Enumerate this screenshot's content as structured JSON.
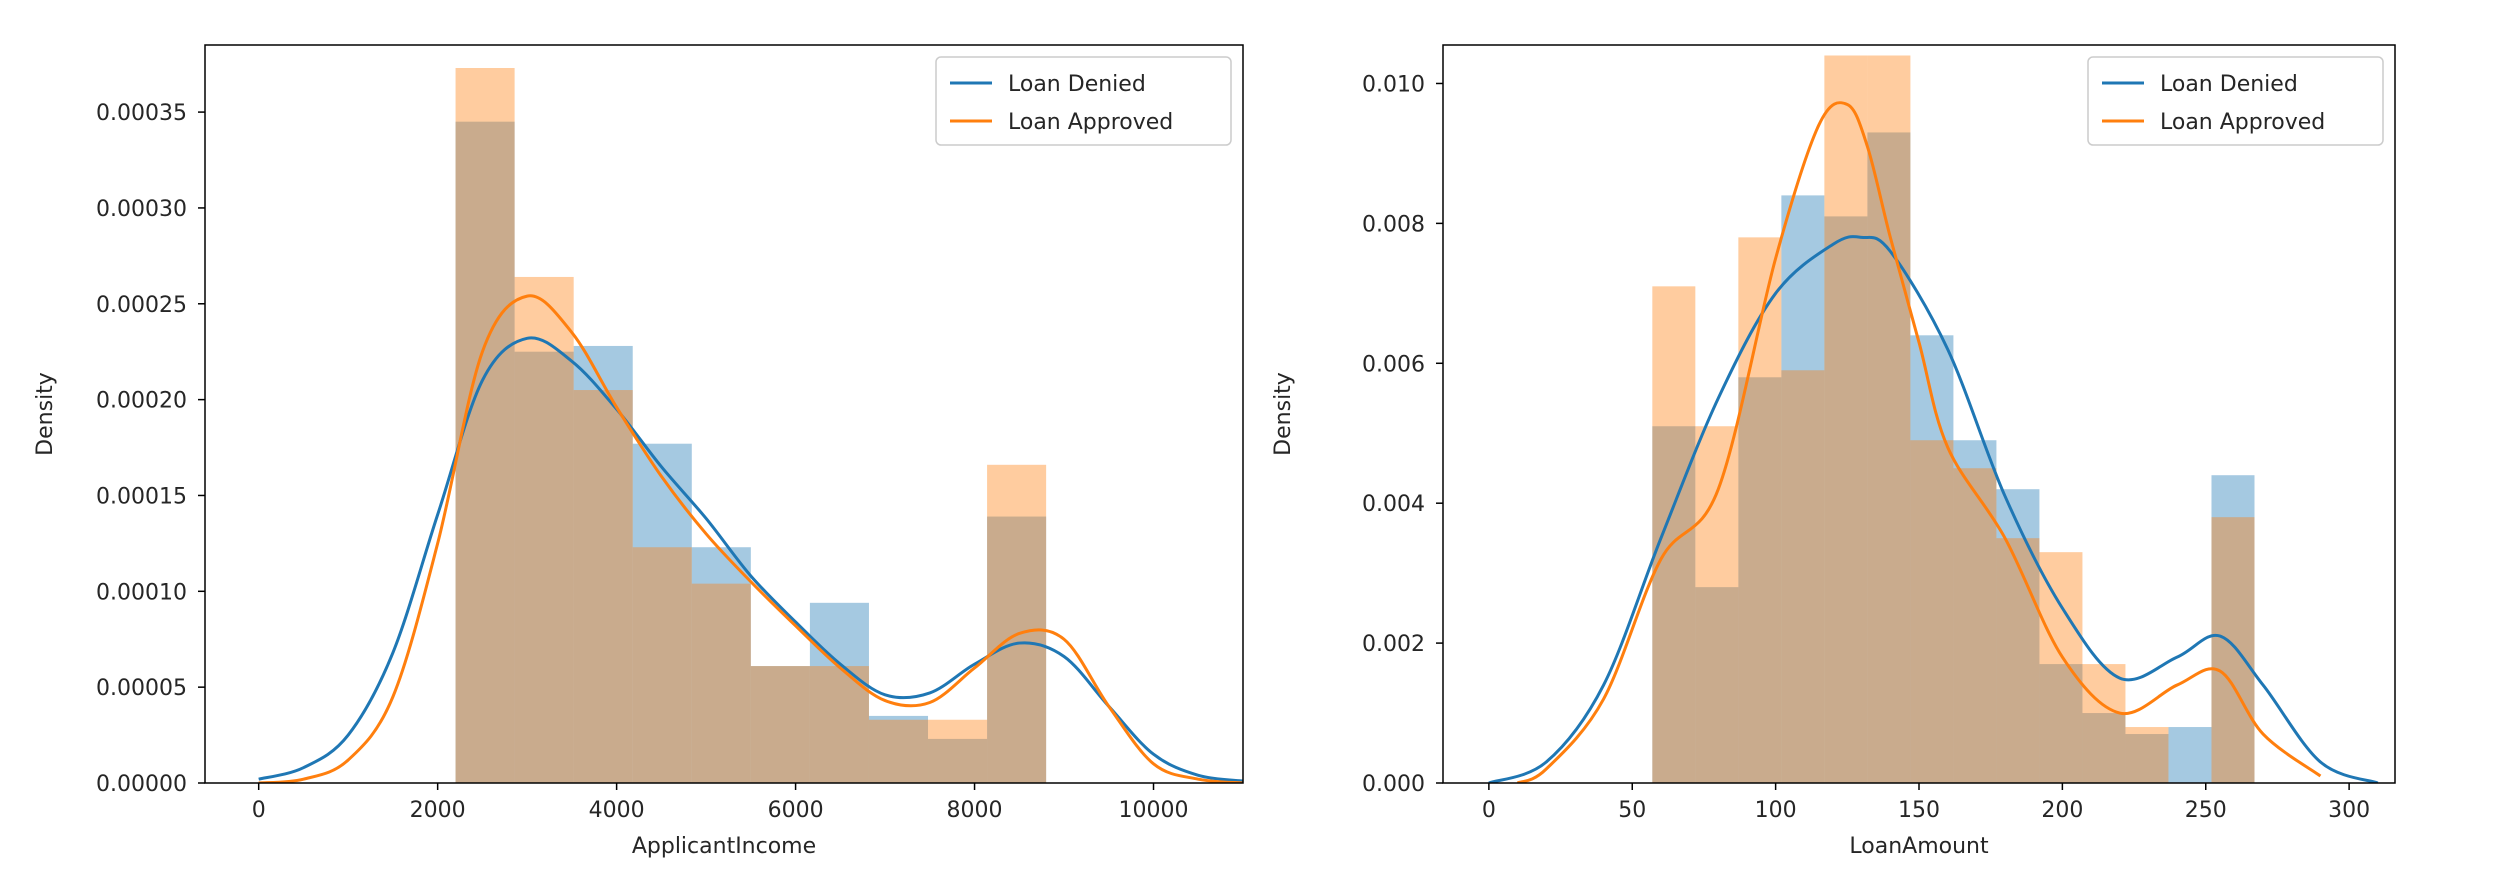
{
  "colors": {
    "denied": "#1f77b4",
    "approved": "#ff7f0e",
    "axis": "#000000",
    "text": "#262626",
    "background": "#ffffff"
  },
  "chart_data": [
    {
      "type": "histogram+kde",
      "title": "",
      "xlabel": "ApplicantIncome",
      "ylabel": "Density",
      "xlim": [
        -600,
        11000
      ],
      "ylim": [
        0,
        0.000385
      ],
      "xticks": [
        0,
        2000,
        4000,
        6000,
        8000,
        10000
      ],
      "xtick_labels": [
        "0",
        "2000",
        "4000",
        "6000",
        "8000",
        "10000"
      ],
      "yticks": [
        0,
        5e-05,
        0.0001,
        0.00015,
        0.0002,
        0.00025,
        0.0003,
        0.00035
      ],
      "ytick_labels": [
        "0.00000",
        "0.00005",
        "0.00010",
        "0.00015",
        "0.00020",
        "0.00025",
        "0.00030",
        "0.00035"
      ],
      "legend": "top-right",
      "bin_edges": [
        2200,
        2860,
        3520,
        4180,
        4840,
        5500,
        6160,
        6820,
        7480,
        8140,
        8800
      ],
      "series": [
        {
          "name": "Loan Denied",
          "hist": [
            0.000345,
            0.000225,
            0.000228,
            0.000177,
            0.000123,
            6.1e-05,
            9.4e-05,
            3.5e-05,
            2.3e-05,
            0.000139
          ],
          "kde_x": [
            0,
            500,
            1000,
            1500,
            2000,
            2500,
            3000,
            3500,
            4000,
            4500,
            5000,
            5500,
            6000,
            6500,
            7000,
            7500,
            8000,
            8500,
            9000,
            9500,
            10000,
            10500,
            11000
          ],
          "kde_y": [
            2e-06,
            8e-06,
            2.5e-05,
            6.8e-05,
            0.00014,
            0.00021,
            0.000232,
            0.00022,
            0.000195,
            0.000165,
            0.000138,
            0.000108,
            8.4e-05,
            6.2e-05,
            4.6e-05,
            4.7e-05,
            6.2e-05,
            7.3e-05,
            6.6e-05,
            4e-05,
            1.5e-05,
            4e-06,
            1e-06
          ]
        },
        {
          "name": "Loan Approved",
          "hist": [
            0.000373,
            0.000264,
            0.000205,
            0.000123,
            0.000104,
            6.1e-05,
            6.1e-05,
            3.3e-05,
            3.3e-05,
            0.000166
          ],
          "kde_x": [
            0,
            500,
            1000,
            1500,
            2000,
            2500,
            3000,
            3500,
            4000,
            4500,
            5000,
            5500,
            6000,
            6500,
            7000,
            7500,
            8000,
            8500,
            9000,
            9500,
            10000,
            10500,
            11000
          ],
          "kde_y": [
            0.0,
            2e-06,
            1.2e-05,
            4.5e-05,
            0.000125,
            0.000225,
            0.000254,
            0.000235,
            0.000196,
            0.00016,
            0.00013,
            0.000105,
            8.2e-05,
            6e-05,
            4.3e-05,
            4.2e-05,
            6e-05,
            7.8e-05,
            7.5e-05,
            4e-05,
            1e-05,
            2e-06,
            0.0
          ]
        }
      ]
    },
    {
      "type": "histogram+kde",
      "title": "",
      "xlabel": "LoanAmount",
      "ylabel": "Density",
      "xlim": [
        -16,
        316
      ],
      "ylim": [
        0,
        0.01055
      ],
      "xticks": [
        0,
        50,
        100,
        150,
        200,
        250,
        300
      ],
      "xtick_labels": [
        "0",
        "50",
        "100",
        "150",
        "200",
        "250",
        "300"
      ],
      "yticks": [
        0,
        0.002,
        0.004,
        0.006,
        0.008,
        0.01
      ],
      "ytick_labels": [
        "0.000",
        "0.002",
        "0.004",
        "0.006",
        "0.008",
        "0.010"
      ],
      "legend": "top-right",
      "bin_edges": [
        57,
        72,
        87,
        102,
        117,
        132,
        147,
        162,
        177,
        192,
        207,
        222,
        237,
        252
      ],
      "series": [
        {
          "name": "Loan Denied",
          "hist": [
            0.0051,
            0.0028,
            0.0058,
            0.0084,
            0.0081,
            0.0093,
            0.0064,
            0.0049,
            0.0042,
            0.0017,
            0.001,
            0.0007,
            0.0008,
            0.0044
          ],
          "kde_x": [
            0,
            20,
            40,
            60,
            80,
            100,
            120,
            130,
            140,
            160,
            180,
            200,
            220,
            240,
            255,
            270,
            290,
            310
          ],
          "kde_y": [
            0.0,
            0.0003,
            0.0014,
            0.0035,
            0.0055,
            0.007,
            0.0077,
            0.0078,
            0.0076,
            0.0062,
            0.0041,
            0.0025,
            0.0015,
            0.0018,
            0.0021,
            0.0014,
            0.0003,
            0.0
          ],
          "hist_last_width": 6
        },
        {
          "name": "Loan Approved",
          "hist": [
            0.0071,
            0.0051,
            0.0078,
            0.0059,
            0.0104,
            0.0104,
            0.0049,
            0.0045,
            0.0035,
            0.0033,
            0.0017,
            0.0008,
            0.0,
            0.0038
          ],
          "kde_x": [
            10,
            20,
            40,
            60,
            80,
            100,
            115,
            125,
            132,
            140,
            150,
            160,
            180,
            200,
            220,
            240,
            255,
            270,
            290
          ],
          "kde_y": [
            0.0,
            0.0002,
            0.0012,
            0.0032,
            0.0042,
            0.0075,
            0.0094,
            0.0097,
            0.0091,
            0.0078,
            0.0063,
            0.0048,
            0.0035,
            0.0018,
            0.001,
            0.0014,
            0.0016,
            0.0007,
            0.0001
          ],
          "hist_last_width": 6
        }
      ]
    }
  ]
}
